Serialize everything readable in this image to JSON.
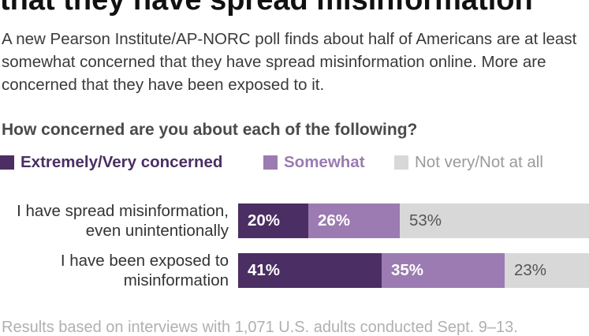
{
  "headline": "that they have spread misinformation",
  "subhead": "A new Pearson Institute/AP-NORC poll finds about half of Americans are at least somewhat concerned that they have spread misinformation online. More are concerned that they have been exposed to it.",
  "footnote": "Results based on interviews with 1,071 U.S. adults conducted Sept. 9–13.",
  "chart_data": {
    "type": "bar",
    "orientation": "horizontal",
    "stacked": true,
    "title": "How concerned are you about each of the following?",
    "categories": [
      [
        "I have spread misinformation,",
        "even unintentionally"
      ],
      [
        "I have been exposed to",
        "misinformation"
      ]
    ],
    "series": [
      {
        "name": "Extremely/Very concerned",
        "color": "#4b2e63",
        "values": [
          20,
          41
        ],
        "labels": [
          "20%",
          "41%"
        ]
      },
      {
        "name": "Somewhat",
        "color": "#9b7bb1",
        "values": [
          26,
          35
        ],
        "labels": [
          "26%",
          "35%"
        ]
      },
      {
        "name": "Not very/Not at all",
        "color": "#d8d8d8",
        "values": [
          53,
          23
        ],
        "labels": [
          "53%",
          "23%"
        ]
      }
    ],
    "xlim": [
      0,
      100
    ],
    "legend_position": "top",
    "grid": false
  }
}
